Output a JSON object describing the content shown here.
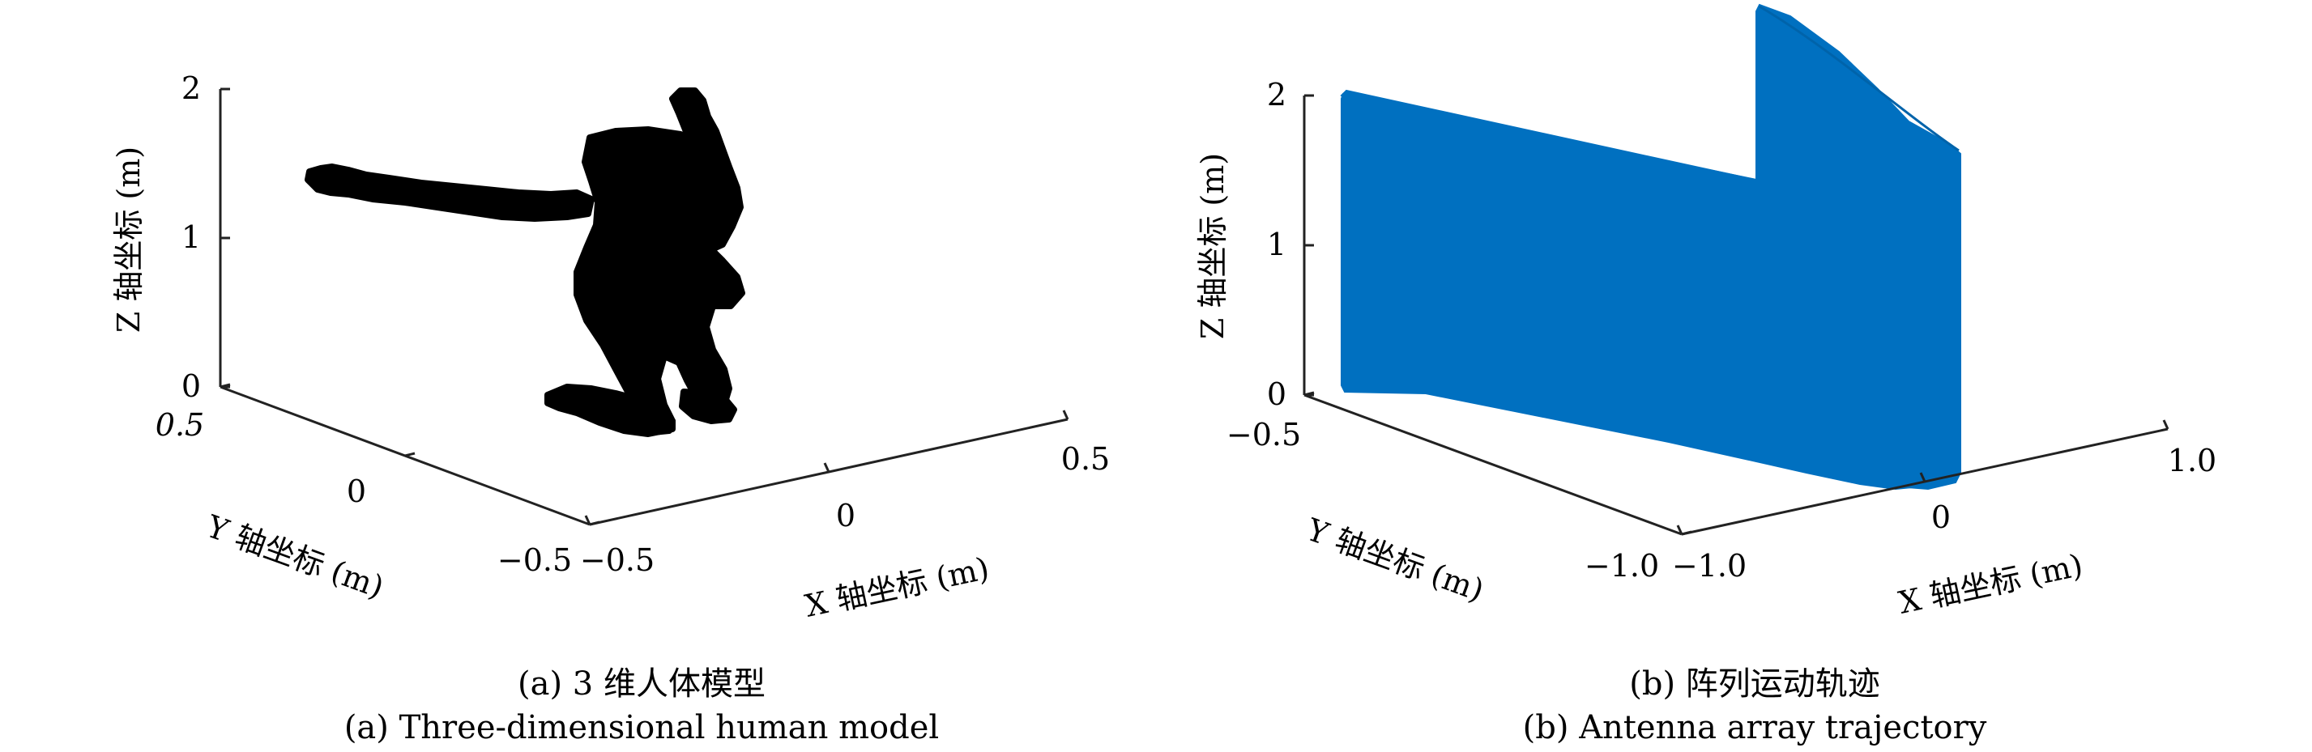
{
  "chart_data": [
    {
      "type": "scatter3d",
      "panel": "a",
      "caption_cn": "(a) 3 维人体模型",
      "caption_en": "(a) Three-dimensional human model",
      "xlabel": "X 轴坐标 (m)",
      "ylabel": "Y 轴坐标 (m)",
      "zlabel": "Z 轴坐标 (m)",
      "xlim": [
        -0.5,
        0.5
      ],
      "ylim": [
        -0.5,
        0.5
      ],
      "zlim": [
        0,
        2
      ],
      "xticks": [
        "−0.5",
        "0",
        "0.5"
      ],
      "yticks": [
        "0.5",
        "0",
        "−0.5"
      ],
      "zticks": [
        "0",
        "1",
        "2"
      ],
      "color": "#000000",
      "series": [
        {
          "description_points": [
            {
              "x": 0.0,
              "y": 0.0,
              "z": 1.9
            },
            {
              "x": -0.45,
              "y": 0.2,
              "z": 1.45
            }
          ]
        }
      ]
    },
    {
      "type": "scatter3d",
      "panel": "b",
      "caption_cn": "(b) 阵列运动轨迹",
      "caption_en": "(b) Antenna array trajectory",
      "xlabel": "X 轴坐标 (m)",
      "ylabel": "Y 轴坐标 (m)",
      "zlabel": "Z 轴坐标 (m)",
      "xlim": [
        -1.0,
        1.0
      ],
      "ylim": [
        -1.0,
        -0.5
      ],
      "zlim": [
        0,
        2
      ],
      "xticks": [
        "−1.0",
        "0",
        "1.0"
      ],
      "yticks": [
        "−0.5",
        "−1.0"
      ],
      "zticks": [
        "0",
        "1",
        "2"
      ],
      "color": "#0070C0"
    }
  ]
}
